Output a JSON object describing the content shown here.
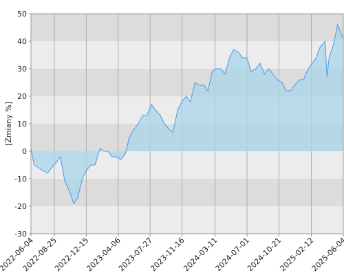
{
  "chart_data": {
    "type": "area",
    "y_label": "[Zmiany %]",
    "x": [
      "2022-06-04",
      "2022-06-15",
      "2022-07-01",
      "2022-07-15",
      "2022-08-01",
      "2022-08-15",
      "2022-09-01",
      "2022-09-15",
      "2022-10-01",
      "2022-10-15",
      "2022-11-01",
      "2022-11-15",
      "2022-12-01",
      "2022-12-15",
      "2023-01-01",
      "2023-01-15",
      "2023-02-01",
      "2023-02-15",
      "2023-03-01",
      "2023-03-15",
      "2023-04-01",
      "2023-04-15",
      "2023-05-01",
      "2023-05-15",
      "2023-06-01",
      "2023-06-15",
      "2023-07-01",
      "2023-07-15",
      "2023-08-01",
      "2023-08-15",
      "2023-09-01",
      "2023-09-15",
      "2023-10-01",
      "2023-10-15",
      "2023-11-01",
      "2023-11-15",
      "2023-12-01",
      "2023-12-15",
      "2024-01-01",
      "2024-01-15",
      "2024-02-01",
      "2024-02-15",
      "2024-03-01",
      "2024-03-15",
      "2024-04-01",
      "2024-04-15",
      "2024-05-01",
      "2024-05-15",
      "2024-06-01",
      "2024-06-15",
      "2024-07-01",
      "2024-07-15",
      "2024-08-01",
      "2024-08-15",
      "2024-09-01",
      "2024-09-15",
      "2024-10-01",
      "2024-10-15",
      "2024-11-01",
      "2024-11-15",
      "2024-12-01",
      "2024-12-15",
      "2025-01-01",
      "2025-01-15",
      "2025-02-01",
      "2025-02-15",
      "2025-03-01",
      "2025-03-15",
      "2025-04-01",
      "2025-04-08",
      "2025-04-15",
      "2025-05-01",
      "2025-05-15",
      "2025-06-04"
    ],
    "series": [
      {
        "color": "#4a98e8",
        "fill": "#a9d6ea",
        "values": [
          1,
          -5,
          -6,
          -7,
          -8,
          -6,
          -4,
          -2,
          -11,
          -14,
          -19,
          -17,
          -10,
          -7,
          -5,
          -5,
          1,
          0,
          0,
          -2,
          -2,
          -3,
          -1,
          5,
          8,
          10,
          13,
          13,
          17,
          15,
          13,
          10,
          8,
          7,
          15,
          18,
          20,
          18,
          25,
          24,
          24,
          22,
          29,
          30,
          30,
          28,
          34,
          37,
          36,
          34,
          34,
          29,
          30,
          32,
          28,
          30,
          28,
          26,
          25,
          22,
          22,
          24,
          26,
          26,
          30,
          32,
          34,
          38,
          40,
          27,
          34,
          39,
          46,
          41
        ]
      }
    ],
    "xlim": [
      "2022-06-04",
      "2025-06-04"
    ],
    "xticks": [
      "2022-06-04",
      "2022-08-25",
      "2022-12-15",
      "2023-04-06",
      "2023-07-27",
      "2023-11-16",
      "2024-03-11",
      "2024-07-01",
      "2024-10-21",
      "2025-02-12",
      "2025-06-04"
    ],
    "ylim": [
      -30,
      50
    ],
    "yticks": [
      -30,
      -20,
      -10,
      0,
      10,
      20,
      30,
      40,
      50
    ],
    "band_colors": [
      "#ececec",
      "#dcdcdc"
    ],
    "grid": true
  }
}
